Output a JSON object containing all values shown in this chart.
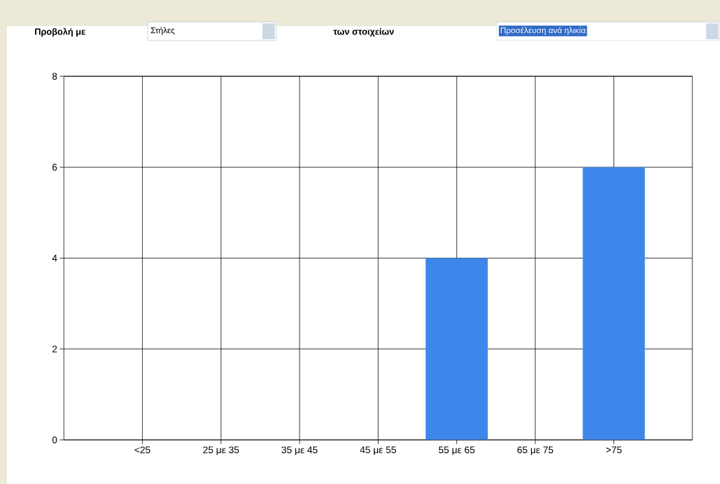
{
  "chart_data": {
    "type": "bar",
    "annotations": [
      "Προβολή με",
      "Στήλες",
      "των στοιχείων",
      "Προσέλευση ανά ηλικία"
    ],
    "categories": [
      "<25",
      "25 με 35",
      "35 με 45",
      "45 με 55",
      "55 με 65",
      "65 με 75",
      ">75"
    ],
    "values": [
      0,
      0,
      0,
      0,
      4,
      0,
      6
    ],
    "color": "#3d87ea",
    "ylim": [
      0,
      8
    ],
    "yticks": [
      0,
      2,
      4,
      6,
      8
    ],
    "grid": true
  }
}
